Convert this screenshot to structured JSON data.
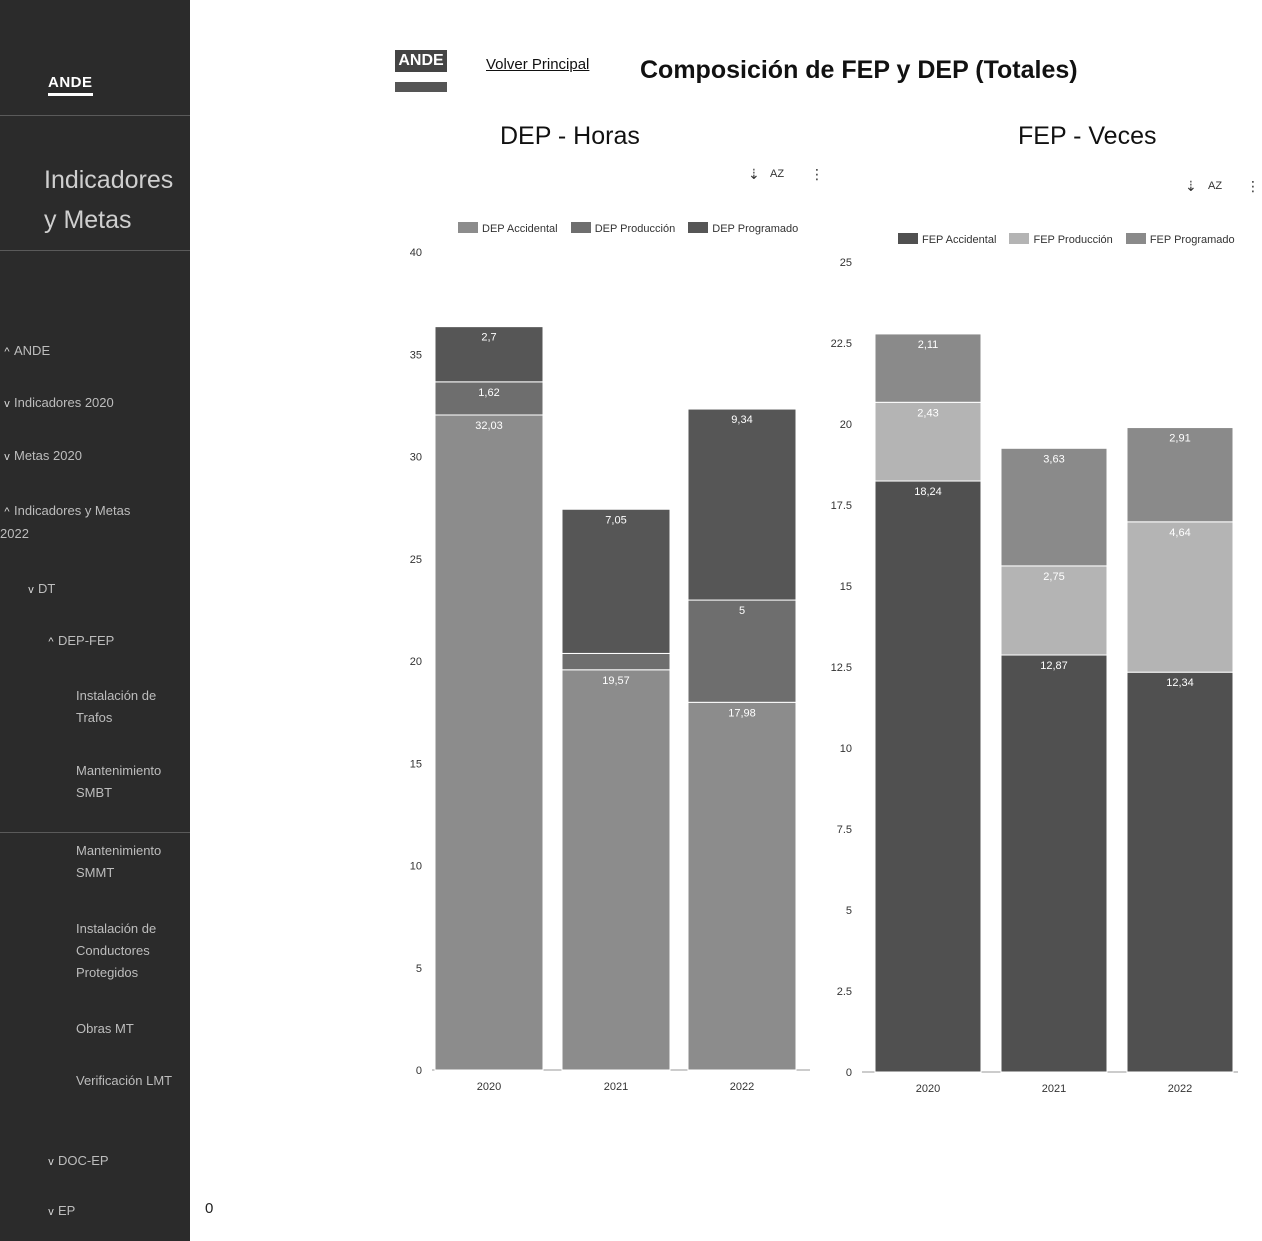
{
  "sidebar": {
    "logo": "ANDE",
    "title": "Indicadores y Metas",
    "items": [
      {
        "chev": "^",
        "label": "ANDE"
      },
      {
        "chev": "v",
        "label": "Indicadores 2020"
      },
      {
        "chev": "v",
        "label": "Metas 2020"
      },
      {
        "chev": "^",
        "label": "Indicadores y Metas 2022"
      },
      {
        "chev": "v",
        "label": "DT"
      },
      {
        "chev": "^",
        "label": "DEP-FEP"
      },
      {
        "chev": "",
        "label": "Instalación de Trafos"
      },
      {
        "chev": "",
        "label": "Mantenimiento SMBT"
      },
      {
        "chev": "",
        "label": "Mantenimiento SMMT"
      },
      {
        "chev": "",
        "label": "Instalación de Conductores Protegidos"
      },
      {
        "chev": "",
        "label": "Obras MT"
      },
      {
        "chev": "",
        "label": "Verificación LMT"
      },
      {
        "chev": "v",
        "label": "DOC-EP"
      },
      {
        "chev": "v",
        "label": "EP"
      }
    ]
  },
  "counter": "0",
  "header": {
    "logo": "ANDE",
    "back_link": "Volver Principal",
    "title": "Composición de FEP y DEP (Totales)"
  },
  "toolbar": {
    "download_icon": "download-icon",
    "sort_label": "AZ",
    "more_icon": "more-vertical-icon"
  },
  "chart_data": [
    {
      "type": "bar",
      "stacked": true,
      "title": "DEP - Horas",
      "categories": [
        "2020",
        "2021",
        "2022"
      ],
      "series": [
        {
          "name": "DEP Accidental",
          "color": "#8c8c8c",
          "values": [
            32.03,
            19.57,
            17.98
          ],
          "labels": [
            "32,03",
            "19,57",
            "17,98"
          ]
        },
        {
          "name": "DEP Producción",
          "color": "#6e6e6e",
          "values": [
            1.62,
            0.8,
            5
          ],
          "labels": [
            "1,62",
            "",
            "5"
          ]
        },
        {
          "name": "DEP Programado",
          "color": "#565656",
          "values": [
            2.7,
            7.05,
            9.34
          ],
          "labels": [
            "2,7",
            "7,05",
            "9,34"
          ]
        }
      ],
      "ylim": [
        0,
        40
      ],
      "yticks": [
        "0",
        "5",
        "10",
        "15",
        "20",
        "25",
        "30",
        "35",
        "40"
      ],
      "legend": "top"
    },
    {
      "type": "bar",
      "stacked": true,
      "title": "FEP - Veces",
      "categories": [
        "2020",
        "2021",
        "2022"
      ],
      "series": [
        {
          "name": "FEP Accidental",
          "color": "#505050",
          "values": [
            18.24,
            12.87,
            12.34
          ],
          "labels": [
            "18,24",
            "12,87",
            "12,34"
          ]
        },
        {
          "name": "FEP Producción",
          "color": "#b4b4b4",
          "values": [
            2.43,
            2.75,
            4.64
          ],
          "labels": [
            "2,43",
            "2,75",
            "4,64"
          ]
        },
        {
          "name": "FEP Programado",
          "color": "#8a8a8a",
          "values": [
            2.11,
            3.63,
            2.91
          ],
          "labels": [
            "2,11",
            "3,63",
            "2,91"
          ]
        }
      ],
      "ylim": [
        0,
        25
      ],
      "yticks": [
        "0",
        "2.5",
        "5",
        "7.5",
        "10",
        "12.5",
        "15",
        "17.5",
        "20",
        "22.5",
        "25"
      ],
      "legend": "top"
    }
  ]
}
